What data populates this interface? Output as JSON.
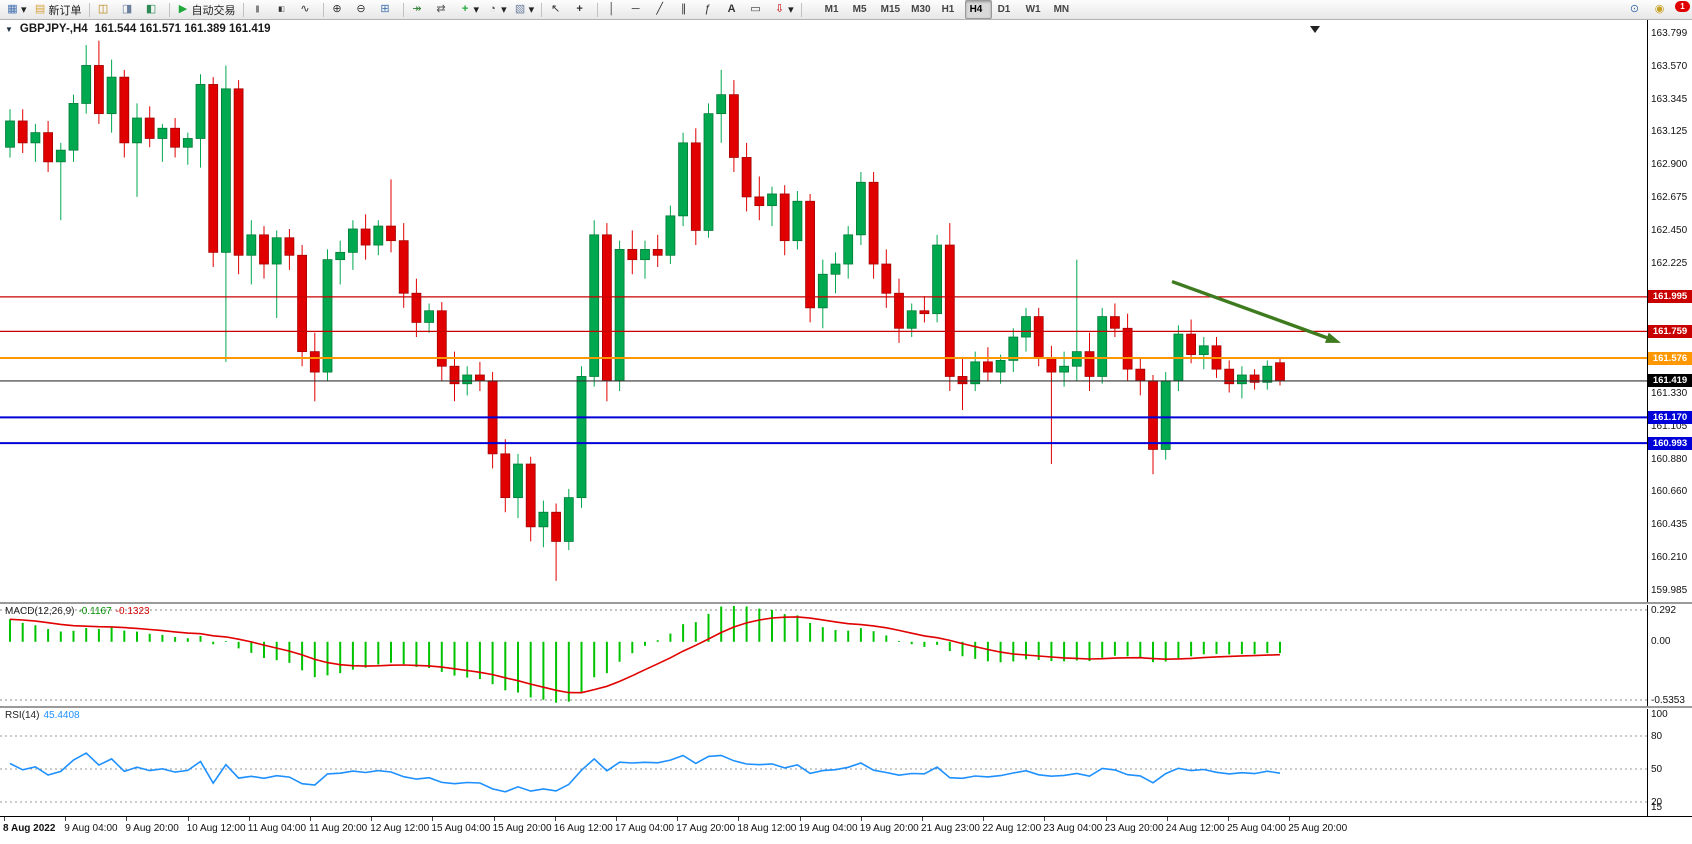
{
  "toolbar": {
    "new_order_label": "新订单",
    "autotrading_label": "自动交易",
    "badge_count": "1",
    "timeframes": [
      "M1",
      "M5",
      "M15",
      "M30",
      "H1",
      "H4",
      "D1",
      "W1",
      "MN"
    ],
    "active_timeframe": "H4",
    "items": [
      {
        "type": "button",
        "name": "charts-menu-button",
        "icon": "chart-grid-icon",
        "caret": true
      },
      {
        "type": "button",
        "name": "new-order-button",
        "icon": "new-order-icon",
        "label": "新订单"
      },
      {
        "type": "sep"
      },
      {
        "type": "button",
        "name": "chart-window-button",
        "icon": "chart-window-icon"
      },
      {
        "type": "button",
        "name": "profiles-button",
        "icon": "profiles-icon"
      },
      {
        "type": "button",
        "name": "data-window-button",
        "icon": "data-window-icon"
      },
      {
        "type": "sep"
      },
      {
        "type": "button",
        "name": "autotrading-button",
        "icon": "autotrading-icon",
        "label": "自动交易"
      },
      {
        "type": "sep"
      },
      {
        "type": "button",
        "name": "ohlc-bars-button",
        "icon": "ohlc-bars-icon"
      },
      {
        "type": "button",
        "name": "candlesticks-button",
        "icon": "candlestick-icon"
      },
      {
        "type": "button",
        "name": "line-chart-button",
        "icon": "line-chart-icon"
      },
      {
        "type": "sep"
      },
      {
        "type": "button",
        "name": "zoom-in-button",
        "icon": "zoom-in-icon"
      },
      {
        "type": "button",
        "name": "zoom-out-button",
        "icon": "zoom-out-icon"
      },
      {
        "type": "button",
        "name": "tile-windows-button",
        "icon": "tile-windows-icon"
      },
      {
        "type": "sep"
      },
      {
        "type": "button",
        "name": "auto-scroll-button",
        "icon": "auto-scroll-icon"
      },
      {
        "type": "button",
        "name": "chart-shift-button",
        "icon": "chart-shift-icon"
      },
      {
        "type": "button",
        "name": "indicators-button",
        "icon": "indicators-icon",
        "caret": true
      },
      {
        "type": "button",
        "name": "periods-button",
        "icon": "clock-icon",
        "caret": true
      },
      {
        "type": "button",
        "name": "templates-button",
        "icon": "template-icon",
        "caret": true
      },
      {
        "type": "sep"
      },
      {
        "type": "button",
        "name": "cursor-button",
        "icon": "cursor-icon"
      },
      {
        "type": "button",
        "name": "crosshair-button",
        "icon": "crosshair-icon"
      },
      {
        "type": "sep"
      },
      {
        "type": "button",
        "name": "vertical-line-button",
        "icon": "vertical-line-icon"
      },
      {
        "type": "button",
        "name": "horizontal-line-button",
        "icon": "horizontal-line-icon"
      },
      {
        "type": "button",
        "name": "trendline-button",
        "icon": "trendline-icon"
      },
      {
        "type": "button",
        "name": "channel-button",
        "icon": "channel-icon"
      },
      {
        "type": "button",
        "name": "fibonacci-button",
        "icon": "fibonacci-icon"
      },
      {
        "type": "button",
        "name": "text-button",
        "icon": "text-icon"
      },
      {
        "type": "button",
        "name": "label-button",
        "icon": "label-icon"
      },
      {
        "type": "button",
        "name": "arrows-button",
        "icon": "arrows-icon",
        "caret": true
      },
      {
        "type": "sep"
      }
    ],
    "right_items": [
      {
        "type": "button",
        "name": "search-button",
        "icon": "search-icon"
      },
      {
        "type": "button",
        "name": "community-button",
        "icon": "community-icon"
      }
    ]
  },
  "chart": {
    "title_symbol": "GBPJPY-,H4",
    "title_ohlc": "161.544 161.571 161.389 161.419"
  },
  "indicators": {
    "macd": {
      "name": "MACD(12,26,9)",
      "value_main": "-0.1167",
      "value_signal": "-0.1323",
      "axis": [
        "0.292",
        "0.00",
        "-0.5353"
      ],
      "histogram_color": "#00c300",
      "signal_color": "#e00000"
    },
    "rsi": {
      "name": "RSI(14)",
      "value": "45.4408",
      "axis": [
        "100",
        "80",
        "50",
        "20",
        "15"
      ],
      "line_color": "#1e90ff",
      "levels": [
        80,
        50,
        20
      ]
    }
  },
  "chart_data": {
    "type": "candlestick",
    "symbol": "GBPJPY-",
    "timeframe": "H4",
    "last_ohlc": {
      "open": 161.544,
      "high": 161.571,
      "low": 161.389,
      "close": 161.419
    },
    "up_color": "#00a94f",
    "down_color": "#e10000",
    "price_axis_ticks": [
      "163.799",
      "163.570",
      "163.345",
      "163.125",
      "162.900",
      "162.675",
      "162.450",
      "162.225",
      "162.000",
      "161.775",
      "161.550",
      "161.330",
      "161.105",
      "160.880",
      "160.660",
      "160.435",
      "160.210",
      "159.985"
    ],
    "levels": [
      {
        "price": 161.995,
        "label": "161.995",
        "color": "#c80000",
        "role": "resistance"
      },
      {
        "price": 161.759,
        "label": "161.759",
        "color": "#c80000",
        "role": "resistance"
      },
      {
        "price": 161.576,
        "label": "161.576",
        "color": "#ff9800",
        "role": "pivot"
      },
      {
        "price": 161.419,
        "label": "161.419",
        "color": "#000000",
        "role": "current-price"
      },
      {
        "price": 161.17,
        "label": "161.170",
        "color": "#0000d8",
        "role": "support"
      },
      {
        "price": 160.993,
        "label": "160.993",
        "color": "#0000d8",
        "role": "support"
      }
    ],
    "annotations": [
      {
        "type": "arrow",
        "color": "#3e7a1e",
        "from": {
          "bar": 91.5,
          "price": 162.1
        },
        "to": {
          "bar": 104.8,
          "price": 161.68
        }
      }
    ],
    "time_labels": [
      "8 Aug 2022",
      "9 Aug 04:00",
      "9 Aug 20:00",
      "10 Aug 12:00",
      "11 Aug 04:00",
      "11 Aug 20:00",
      "12 Aug 12:00",
      "15 Aug 04:00",
      "15 Aug 20:00",
      "16 Aug 12:00",
      "17 Aug 04:00",
      "17 Aug 20:00",
      "18 Aug 12:00",
      "19 Aug 04:00",
      "19 Aug 20:00",
      "21 Aug 23:00",
      "22 Aug 12:00",
      "23 Aug 04:00",
      "23 Aug 20:00",
      "24 Aug 12:00",
      "25 Aug 04:00",
      "25 Aug 20:00"
    ],
    "candles": [
      [
        163.02,
        163.28,
        162.95,
        163.2
      ],
      [
        163.2,
        163.28,
        162.98,
        163.05
      ],
      [
        163.05,
        163.18,
        162.92,
        163.12
      ],
      [
        163.12,
        163.2,
        162.85,
        162.92
      ],
      [
        162.92,
        163.05,
        162.52,
        163.0
      ],
      [
        163.0,
        163.38,
        162.92,
        163.32
      ],
      [
        163.32,
        163.72,
        163.25,
        163.58
      ],
      [
        163.58,
        163.75,
        163.18,
        163.25
      ],
      [
        163.25,
        163.62,
        163.12,
        163.5
      ],
      [
        163.5,
        163.55,
        162.95,
        163.05
      ],
      [
        163.05,
        163.32,
        162.68,
        163.22
      ],
      [
        163.22,
        163.3,
        163.02,
        163.08
      ],
      [
        163.08,
        163.18,
        162.92,
        163.15
      ],
      [
        163.15,
        163.22,
        162.95,
        163.02
      ],
      [
        163.02,
        163.12,
        162.9,
        163.08
      ],
      [
        163.08,
        163.52,
        162.88,
        163.45
      ],
      [
        163.45,
        163.5,
        162.2,
        162.3
      ],
      [
        162.3,
        163.58,
        161.55,
        163.42
      ],
      [
        163.42,
        163.48,
        162.15,
        162.28
      ],
      [
        162.28,
        162.52,
        162.08,
        162.42
      ],
      [
        162.42,
        162.48,
        162.12,
        162.22
      ],
      [
        162.22,
        162.45,
        161.85,
        162.4
      ],
      [
        162.4,
        162.46,
        162.18,
        162.28
      ],
      [
        162.28,
        162.35,
        161.52,
        161.62
      ],
      [
        161.62,
        161.75,
        161.28,
        161.48
      ],
      [
        161.48,
        162.32,
        161.42,
        162.25
      ],
      [
        162.25,
        162.38,
        162.08,
        162.3
      ],
      [
        162.3,
        162.52,
        162.18,
        162.46
      ],
      [
        162.46,
        162.56,
        162.25,
        162.35
      ],
      [
        162.35,
        162.52,
        162.28,
        162.48
      ],
      [
        162.48,
        162.8,
        162.3,
        162.38
      ],
      [
        162.38,
        162.5,
        161.92,
        162.02
      ],
      [
        162.02,
        162.12,
        161.72,
        161.82
      ],
      [
        161.82,
        161.95,
        161.75,
        161.9
      ],
      [
        161.9,
        161.96,
        161.42,
        161.52
      ],
      [
        161.52,
        161.62,
        161.28,
        161.4
      ],
      [
        161.4,
        161.52,
        161.32,
        161.46
      ],
      [
        161.46,
        161.55,
        161.35,
        161.42
      ],
      [
        161.42,
        161.48,
        160.82,
        160.92
      ],
      [
        160.92,
        161.02,
        160.52,
        160.62
      ],
      [
        160.62,
        160.92,
        160.48,
        160.85
      ],
      [
        160.85,
        160.9,
        160.32,
        160.42
      ],
      [
        160.42,
        160.6,
        160.28,
        160.52
      ],
      [
        160.52,
        160.58,
        160.05,
        160.32
      ],
      [
        160.32,
        160.68,
        160.26,
        160.62
      ],
      [
        160.62,
        161.52,
        160.55,
        161.45
      ],
      [
        161.45,
        162.52,
        161.38,
        162.42
      ],
      [
        162.42,
        162.5,
        161.28,
        161.42
      ],
      [
        161.42,
        162.38,
        161.35,
        162.32
      ],
      [
        162.32,
        162.45,
        162.15,
        162.25
      ],
      [
        162.25,
        162.38,
        162.12,
        162.32
      ],
      [
        162.32,
        162.42,
        162.2,
        162.28
      ],
      [
        162.28,
        162.62,
        162.22,
        162.55
      ],
      [
        162.55,
        163.12,
        162.48,
        163.05
      ],
      [
        163.05,
        163.15,
        162.35,
        162.45
      ],
      [
        162.45,
        163.32,
        162.4,
        163.25
      ],
      [
        163.25,
        163.55,
        163.05,
        163.38
      ],
      [
        163.38,
        163.48,
        162.85,
        162.95
      ],
      [
        162.95,
        163.05,
        162.58,
        162.68
      ],
      [
        162.68,
        162.82,
        162.52,
        162.62
      ],
      [
        162.62,
        162.75,
        162.48,
        162.7
      ],
      [
        162.7,
        162.76,
        162.28,
        162.38
      ],
      [
        162.38,
        162.72,
        162.32,
        162.65
      ],
      [
        162.65,
        162.7,
        161.82,
        161.92
      ],
      [
        161.92,
        162.25,
        161.78,
        162.15
      ],
      [
        162.15,
        162.3,
        162.02,
        162.22
      ],
      [
        162.22,
        162.48,
        162.12,
        162.42
      ],
      [
        162.42,
        162.85,
        162.35,
        162.78
      ],
      [
        162.78,
        162.85,
        162.12,
        162.22
      ],
      [
        162.22,
        162.32,
        161.92,
        162.02
      ],
      [
        162.02,
        162.12,
        161.68,
        161.78
      ],
      [
        161.78,
        161.95,
        161.72,
        161.9
      ],
      [
        161.9,
        162.0,
        161.82,
        161.88
      ],
      [
        161.88,
        162.42,
        161.82,
        162.35
      ],
      [
        162.35,
        162.5,
        161.35,
        161.45
      ],
      [
        161.45,
        161.58,
        161.22,
        161.4
      ],
      [
        161.4,
        161.62,
        161.35,
        161.55
      ],
      [
        161.55,
        161.65,
        161.42,
        161.48
      ],
      [
        161.48,
        161.6,
        161.4,
        161.56
      ],
      [
        161.56,
        161.78,
        161.48,
        161.72
      ],
      [
        161.72,
        161.92,
        161.62,
        161.86
      ],
      [
        161.86,
        161.92,
        161.52,
        161.58
      ],
      [
        161.58,
        161.66,
        160.85,
        161.48
      ],
      [
        161.48,
        161.62,
        161.38,
        161.52
      ],
      [
        161.52,
        162.25,
        161.42,
        161.62
      ],
      [
        161.62,
        161.75,
        161.35,
        161.45
      ],
      [
        161.45,
        161.92,
        161.4,
        161.86
      ],
      [
        161.86,
        161.95,
        161.72,
        161.78
      ],
      [
        161.78,
        161.88,
        161.42,
        161.5
      ],
      [
        161.5,
        161.58,
        161.32,
        161.42
      ],
      [
        161.42,
        161.46,
        160.78,
        160.95
      ],
      [
        160.95,
        161.48,
        160.88,
        161.42
      ],
      [
        161.42,
        161.8,
        161.35,
        161.74
      ],
      [
        161.74,
        161.84,
        161.54,
        161.6
      ],
      [
        161.6,
        161.72,
        161.5,
        161.66
      ],
      [
        161.66,
        161.72,
        161.44,
        161.5
      ],
      [
        161.5,
        161.56,
        161.34,
        161.4
      ],
      [
        161.4,
        161.52,
        161.3,
        161.46
      ],
      [
        161.46,
        161.5,
        161.36,
        161.41
      ],
      [
        161.41,
        161.56,
        161.36,
        161.52
      ],
      [
        161.544,
        161.571,
        161.389,
        161.419
      ]
    ]
  }
}
